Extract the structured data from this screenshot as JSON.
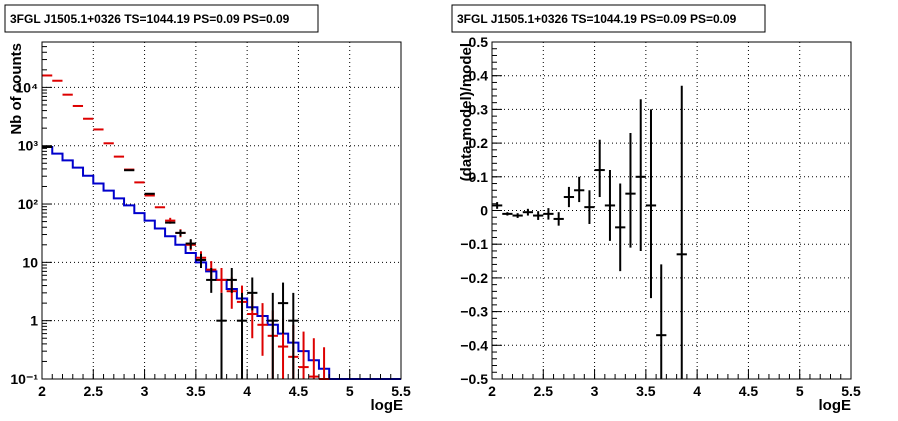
{
  "chart_data": [
    {
      "type": "histogram",
      "title": "3FGL J1505.1+0326 TS=1044.19 PS=0.09 PS=0.09",
      "xlabel": "logE",
      "ylabel": "Nb of counts",
      "xlim": [
        2,
        5.5
      ],
      "ylim": [
        0.1,
        60000
      ],
      "yscale": "log",
      "grid": true,
      "x_ticks": [
        "2",
        "2.5",
        "3",
        "3.5",
        "4",
        "4.5",
        "5",
        "5.5"
      ],
      "y_ticks": [
        "10⁻¹",
        "1",
        "10",
        "10²",
        "10³",
        "10⁴"
      ],
      "series": [
        {
          "color": "#0000cc",
          "style": "step",
          "bins": [
            [
              2.0,
              2.1,
              950
            ],
            [
              2.1,
              2.2,
              730
            ],
            [
              2.2,
              2.3,
              560
            ],
            [
              2.3,
              2.4,
              420
            ],
            [
              2.4,
              2.5,
              305
            ],
            [
              2.5,
              2.6,
              225
            ],
            [
              2.6,
              2.7,
              170
            ],
            [
              2.7,
              2.8,
              125
            ],
            [
              2.8,
              2.9,
              95
            ],
            [
              2.9,
              3.0,
              70
            ],
            [
              3.0,
              3.1,
              52
            ],
            [
              3.1,
              3.2,
              38
            ],
            [
              3.2,
              3.3,
              28
            ],
            [
              3.3,
              3.4,
              20
            ],
            [
              3.4,
              3.5,
              14.5
            ],
            [
              3.5,
              3.6,
              10
            ],
            [
              3.6,
              3.7,
              7
            ],
            [
              3.7,
              3.8,
              5
            ],
            [
              3.8,
              3.9,
              3.5
            ],
            [
              3.9,
              4.0,
              2.4
            ],
            [
              4.0,
              4.1,
              1.7
            ],
            [
              4.1,
              4.2,
              1.2
            ],
            [
              4.2,
              4.3,
              0.85
            ],
            [
              4.3,
              4.4,
              0.6
            ],
            [
              4.4,
              4.5,
              0.42
            ],
            [
              4.5,
              4.6,
              0.3
            ],
            [
              4.6,
              4.7,
              0.21
            ],
            [
              4.7,
              4.8,
              0.15
            ],
            [
              4.8,
              5.5,
              0.1
            ]
          ]
        },
        {
          "color": "#dd0000",
          "style": "errorbar",
          "points": [
            [
              2.05,
              16000,
              0,
              0
            ],
            [
              2.15,
              13000,
              0,
              0
            ],
            [
              2.25,
              7500,
              0,
              0
            ],
            [
              2.35,
              4800,
              0,
              0
            ],
            [
              2.45,
              2900,
              0,
              0
            ],
            [
              2.55,
              1900,
              0,
              0
            ],
            [
              2.65,
              1100,
              0,
              0
            ],
            [
              2.75,
              650,
              0,
              0
            ],
            [
              2.85,
              390,
              0,
              0
            ],
            [
              2.95,
              235,
              0,
              0
            ],
            [
              3.05,
              140,
              0,
              0
            ],
            [
              3.15,
              88,
              0,
              0
            ],
            [
              3.25,
              52,
              46,
              58
            ],
            [
              3.35,
              32,
              27,
              37
            ],
            [
              3.45,
              20,
              16,
              24
            ],
            [
              3.55,
              12,
              9,
              15.5
            ],
            [
              3.65,
              7.5,
              5,
              10.5
            ],
            [
              3.75,
              5,
              3,
              8
            ],
            [
              3.85,
              3.2,
              1.6,
              5.5
            ],
            [
              3.95,
              2.1,
              0.9,
              4
            ],
            [
              4.05,
              1.3,
              0.5,
              2.8
            ],
            [
              4.15,
              0.85,
              0.25,
              2
            ],
            [
              4.25,
              0.55,
              0.1,
              1.5
            ],
            [
              4.35,
              0.36,
              0.1,
              1.1
            ],
            [
              4.45,
              0.24,
              0.1,
              0.85
            ],
            [
              4.55,
              0.16,
              0.1,
              0.65
            ],
            [
              4.65,
              0.11,
              0.1,
              0.5
            ],
            [
              4.75,
              0.1,
              0.1,
              0.35
            ]
          ]
        },
        {
          "color": "#000000",
          "style": "errorbar",
          "points": [
            [
              2.05,
              950,
              0,
              0
            ],
            [
              2.85,
              380,
              0,
              0
            ],
            [
              3.05,
              150,
              0,
              0
            ],
            [
              3.25,
              48,
              0,
              0
            ],
            [
              3.35,
              32,
              28,
              36
            ],
            [
              3.45,
              21,
              17,
              25
            ],
            [
              3.55,
              11,
              8,
              14
            ],
            [
              3.65,
              5,
              3,
              8
            ],
            [
              3.75,
              1,
              0.1,
              3
            ],
            [
              3.85,
              5,
              3,
              8
            ],
            [
              3.95,
              1,
              0.1,
              3
            ],
            [
              4.05,
              3,
              1.5,
              5.5
            ],
            [
              4.25,
              1,
              0.1,
              3
            ],
            [
              4.35,
              2,
              0.6,
              4.5
            ],
            [
              4.45,
              1,
              0.1,
              3
            ]
          ]
        }
      ]
    },
    {
      "type": "scatter",
      "title": "3FGL J1505.1+0326 TS=1044.19 PS=0.09 PS=0.09",
      "xlabel": "logE",
      "ylabel": "(data-model)/model",
      "xlim": [
        2,
        5.5
      ],
      "ylim": [
        -0.5,
        0.5
      ],
      "grid": true,
      "x_ticks": [
        "2",
        "2.5",
        "3",
        "3.5",
        "4",
        "4.5",
        "5",
        "5.5"
      ],
      "y_ticks": [
        "−0.5",
        "−0.4",
        "−0.3",
        "−0.2",
        "−0.1",
        "0",
        "0.1",
        "0.2",
        "0.3",
        "0.4",
        "0.5"
      ],
      "series": [
        {
          "color": "#000000",
          "style": "errorbar",
          "points": [
            [
              2.05,
              0.015,
              0.005,
              0.025
            ],
            [
              2.15,
              -0.01,
              -0.015,
              -0.005
            ],
            [
              2.25,
              -0.015,
              -0.022,
              -0.008
            ],
            [
              2.35,
              -0.005,
              -0.015,
              0.005
            ],
            [
              2.45,
              -0.015,
              -0.028,
              -0.002
            ],
            [
              2.55,
              -0.01,
              -0.027,
              0.007
            ],
            [
              2.65,
              -0.025,
              -0.045,
              -0.005
            ],
            [
              2.75,
              0.04,
              0.01,
              0.07
            ],
            [
              2.85,
              0.06,
              0.025,
              0.1
            ],
            [
              2.95,
              0.01,
              -0.04,
              0.06
            ],
            [
              3.05,
              0.12,
              0.04,
              0.21
            ],
            [
              3.15,
              0.015,
              -0.09,
              0.12
            ],
            [
              3.25,
              -0.05,
              -0.18,
              0.08
            ],
            [
              3.35,
              0.05,
              -0.11,
              0.23
            ],
            [
              3.45,
              0.1,
              -0.12,
              0.33
            ],
            [
              3.55,
              0.015,
              -0.26,
              0.3
            ],
            [
              3.65,
              -0.37,
              -0.5,
              -0.16
            ],
            [
              3.85,
              -0.13,
              -0.5,
              0.37
            ]
          ]
        }
      ]
    }
  ]
}
